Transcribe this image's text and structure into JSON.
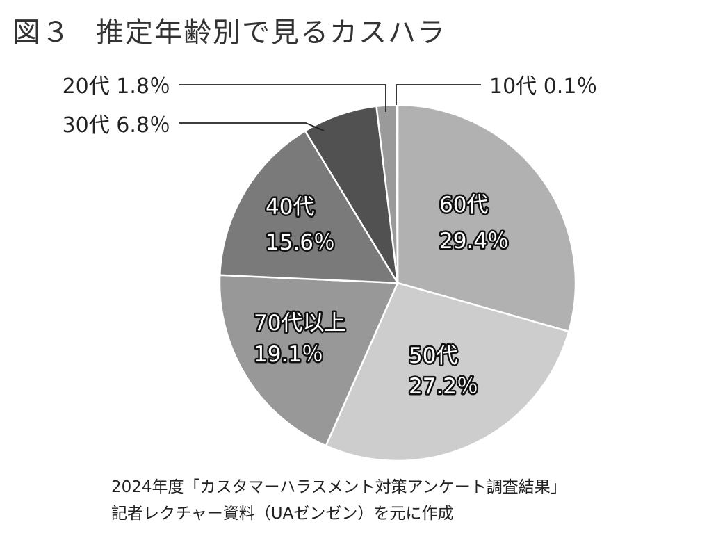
{
  "title": {
    "number": "図３",
    "text": "推定年齢別で見るカスハラ"
  },
  "chart_data": {
    "type": "pie",
    "start_angle_deg": 0,
    "direction": "clockwise",
    "slices": [
      {
        "label": "60代",
        "value": 29.4,
        "value_label": "29.4％",
        "color": "#b1b1b1",
        "label_mode": "inside"
      },
      {
        "label": "50代",
        "value": 27.2,
        "value_label": "27.2％",
        "color": "#cdcdcd",
        "label_mode": "inside"
      },
      {
        "label": "70代以上",
        "value": 19.1,
        "value_label": "19.1％",
        "color": "#989898",
        "label_mode": "inside"
      },
      {
        "label": "40代",
        "value": 15.6,
        "value_label": "15.6％",
        "color": "#7a7a7a",
        "label_mode": "inside"
      },
      {
        "label": "30代",
        "value": 6.8,
        "value_label": "6.8％",
        "color": "#515151",
        "label_mode": "outside"
      },
      {
        "label": "20代",
        "value": 1.8,
        "value_label": "1.8％",
        "color": "#9a9a9a",
        "label_mode": "outside"
      },
      {
        "label": "10代",
        "value": 0.1,
        "value_label": "0.1％",
        "color": "#333333",
        "label_mode": "outside"
      }
    ]
  },
  "source": {
    "line1": "2024年度「カスタマーハラスメント対策アンケート調査結果」",
    "line2": "記者レクチャー資料（UAゼンゼン）を元に作成"
  }
}
